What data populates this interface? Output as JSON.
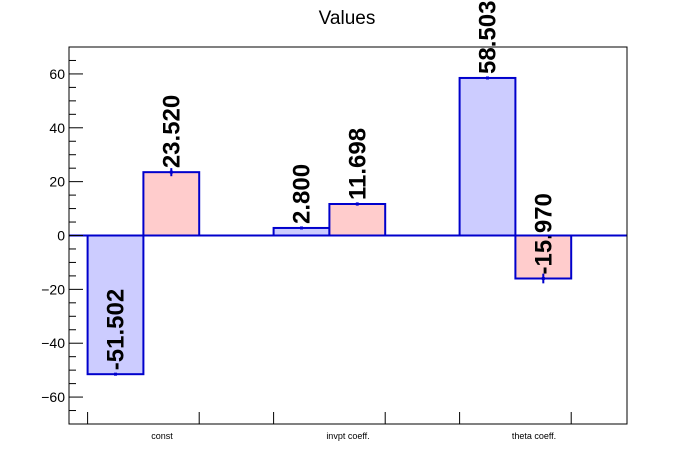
{
  "chart_data": {
    "type": "bar",
    "title": "Values",
    "categories": [
      "const",
      "invpt coeff.",
      "theta coeff."
    ],
    "series": [
      {
        "values": [
          -51.502,
          2.8,
          58.503
        ],
        "labels": [
          "-51.502",
          "2.800",
          "58.503"
        ],
        "errors": [
          0,
          0,
          0
        ],
        "color": "#ccccff",
        "edge": "#0000cc"
      },
      {
        "values": [
          23.52,
          11.698,
          -15.97
        ],
        "labels": [
          "23.520",
          "11.698",
          "-15.970"
        ],
        "errors": [
          1.5,
          0.6,
          1.8
        ],
        "color": "#ffcccc",
        "edge": "#0000cc"
      }
    ],
    "ylim": [
      -70,
      70
    ],
    "yticks": [
      -60,
      -40,
      -20,
      0,
      20,
      40,
      60
    ],
    "ytick_labels": [
      "−60",
      "−40",
      "−20",
      "0",
      "20",
      "40",
      "60"
    ],
    "xlabel": "",
    "ylabel": "",
    "grid": false,
    "zero_line_color": "#0000cc"
  }
}
